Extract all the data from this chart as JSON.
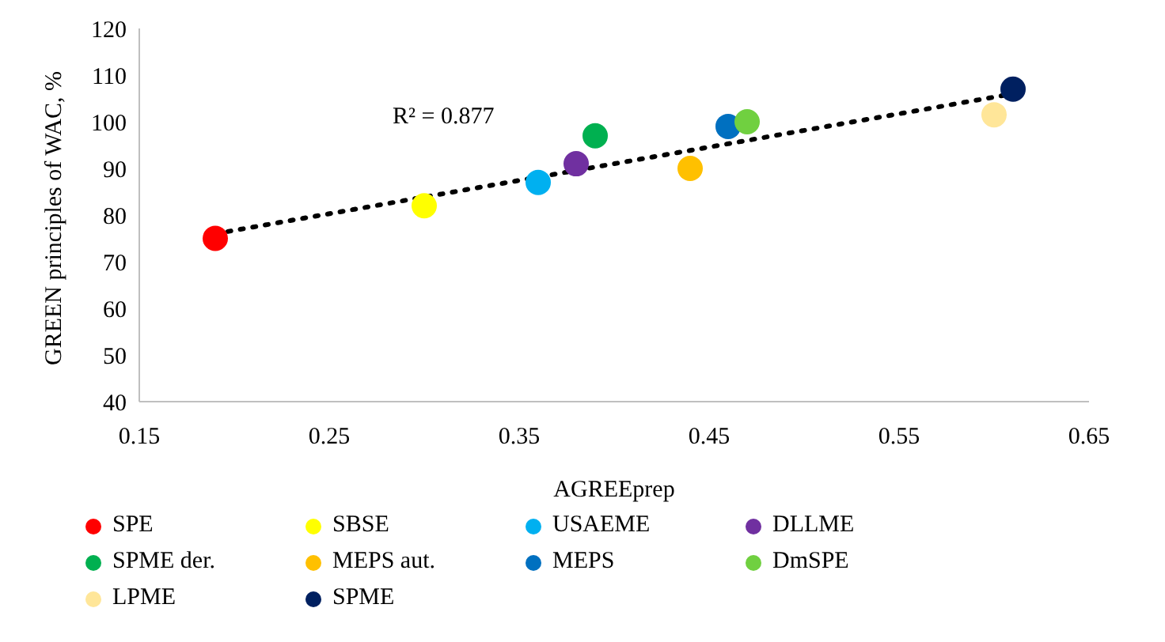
{
  "chart_data": {
    "type": "scatter",
    "xlabel": "AGREEprep",
    "ylabel": "GREEN principles of WAC, %",
    "xlim": [
      0.15,
      0.65
    ],
    "xticks": [
      0.15,
      0.25,
      0.35,
      0.45,
      0.55,
      0.65
    ],
    "ylim": [
      40,
      120
    ],
    "yticks": [
      40,
      50,
      60,
      70,
      80,
      90,
      100,
      110,
      120
    ],
    "grid": false,
    "legend": "bottom",
    "marker": "circle",
    "annotations": [
      "R² = 0.877"
    ],
    "series": [
      {
        "name": "SPE",
        "color": "#ff0000",
        "x": [
          0.19
        ],
        "values": [
          75
        ]
      },
      {
        "name": "SBSE",
        "color": "#ffff00",
        "x": [
          0.3
        ],
        "values": [
          82
        ]
      },
      {
        "name": "USAEME",
        "color": "#00b0f0",
        "x": [
          0.36
        ],
        "values": [
          87
        ]
      },
      {
        "name": "DLLME",
        "color": "#7030a0",
        "x": [
          0.38
        ],
        "values": [
          91
        ]
      },
      {
        "name": "SPME der.",
        "color": "#00b050",
        "x": [
          0.39
        ],
        "values": [
          97
        ]
      },
      {
        "name": "MEPS aut.",
        "color": "#ffc000",
        "x": [
          0.44
        ],
        "values": [
          90
        ]
      },
      {
        "name": "MEPS",
        "color": "#0070c0",
        "x": [
          0.46
        ],
        "values": [
          99
        ]
      },
      {
        "name": "DmSPE",
        "color": "#70d040",
        "x": [
          0.47
        ],
        "values": [
          100
        ]
      },
      {
        "name": "LPME",
        "color": "#ffe699",
        "x": [
          0.6
        ],
        "values": [
          101.5
        ]
      },
      {
        "name": "SPME",
        "color": "#002060",
        "x": [
          0.61
        ],
        "values": [
          107
        ]
      },
      {
        "type": "line",
        "marker": "none",
        "color": "#000000",
        "line_style": "dotted",
        "x": [
          0.19,
          0.61
        ],
        "values": [
          76,
          106
        ]
      }
    ]
  }
}
